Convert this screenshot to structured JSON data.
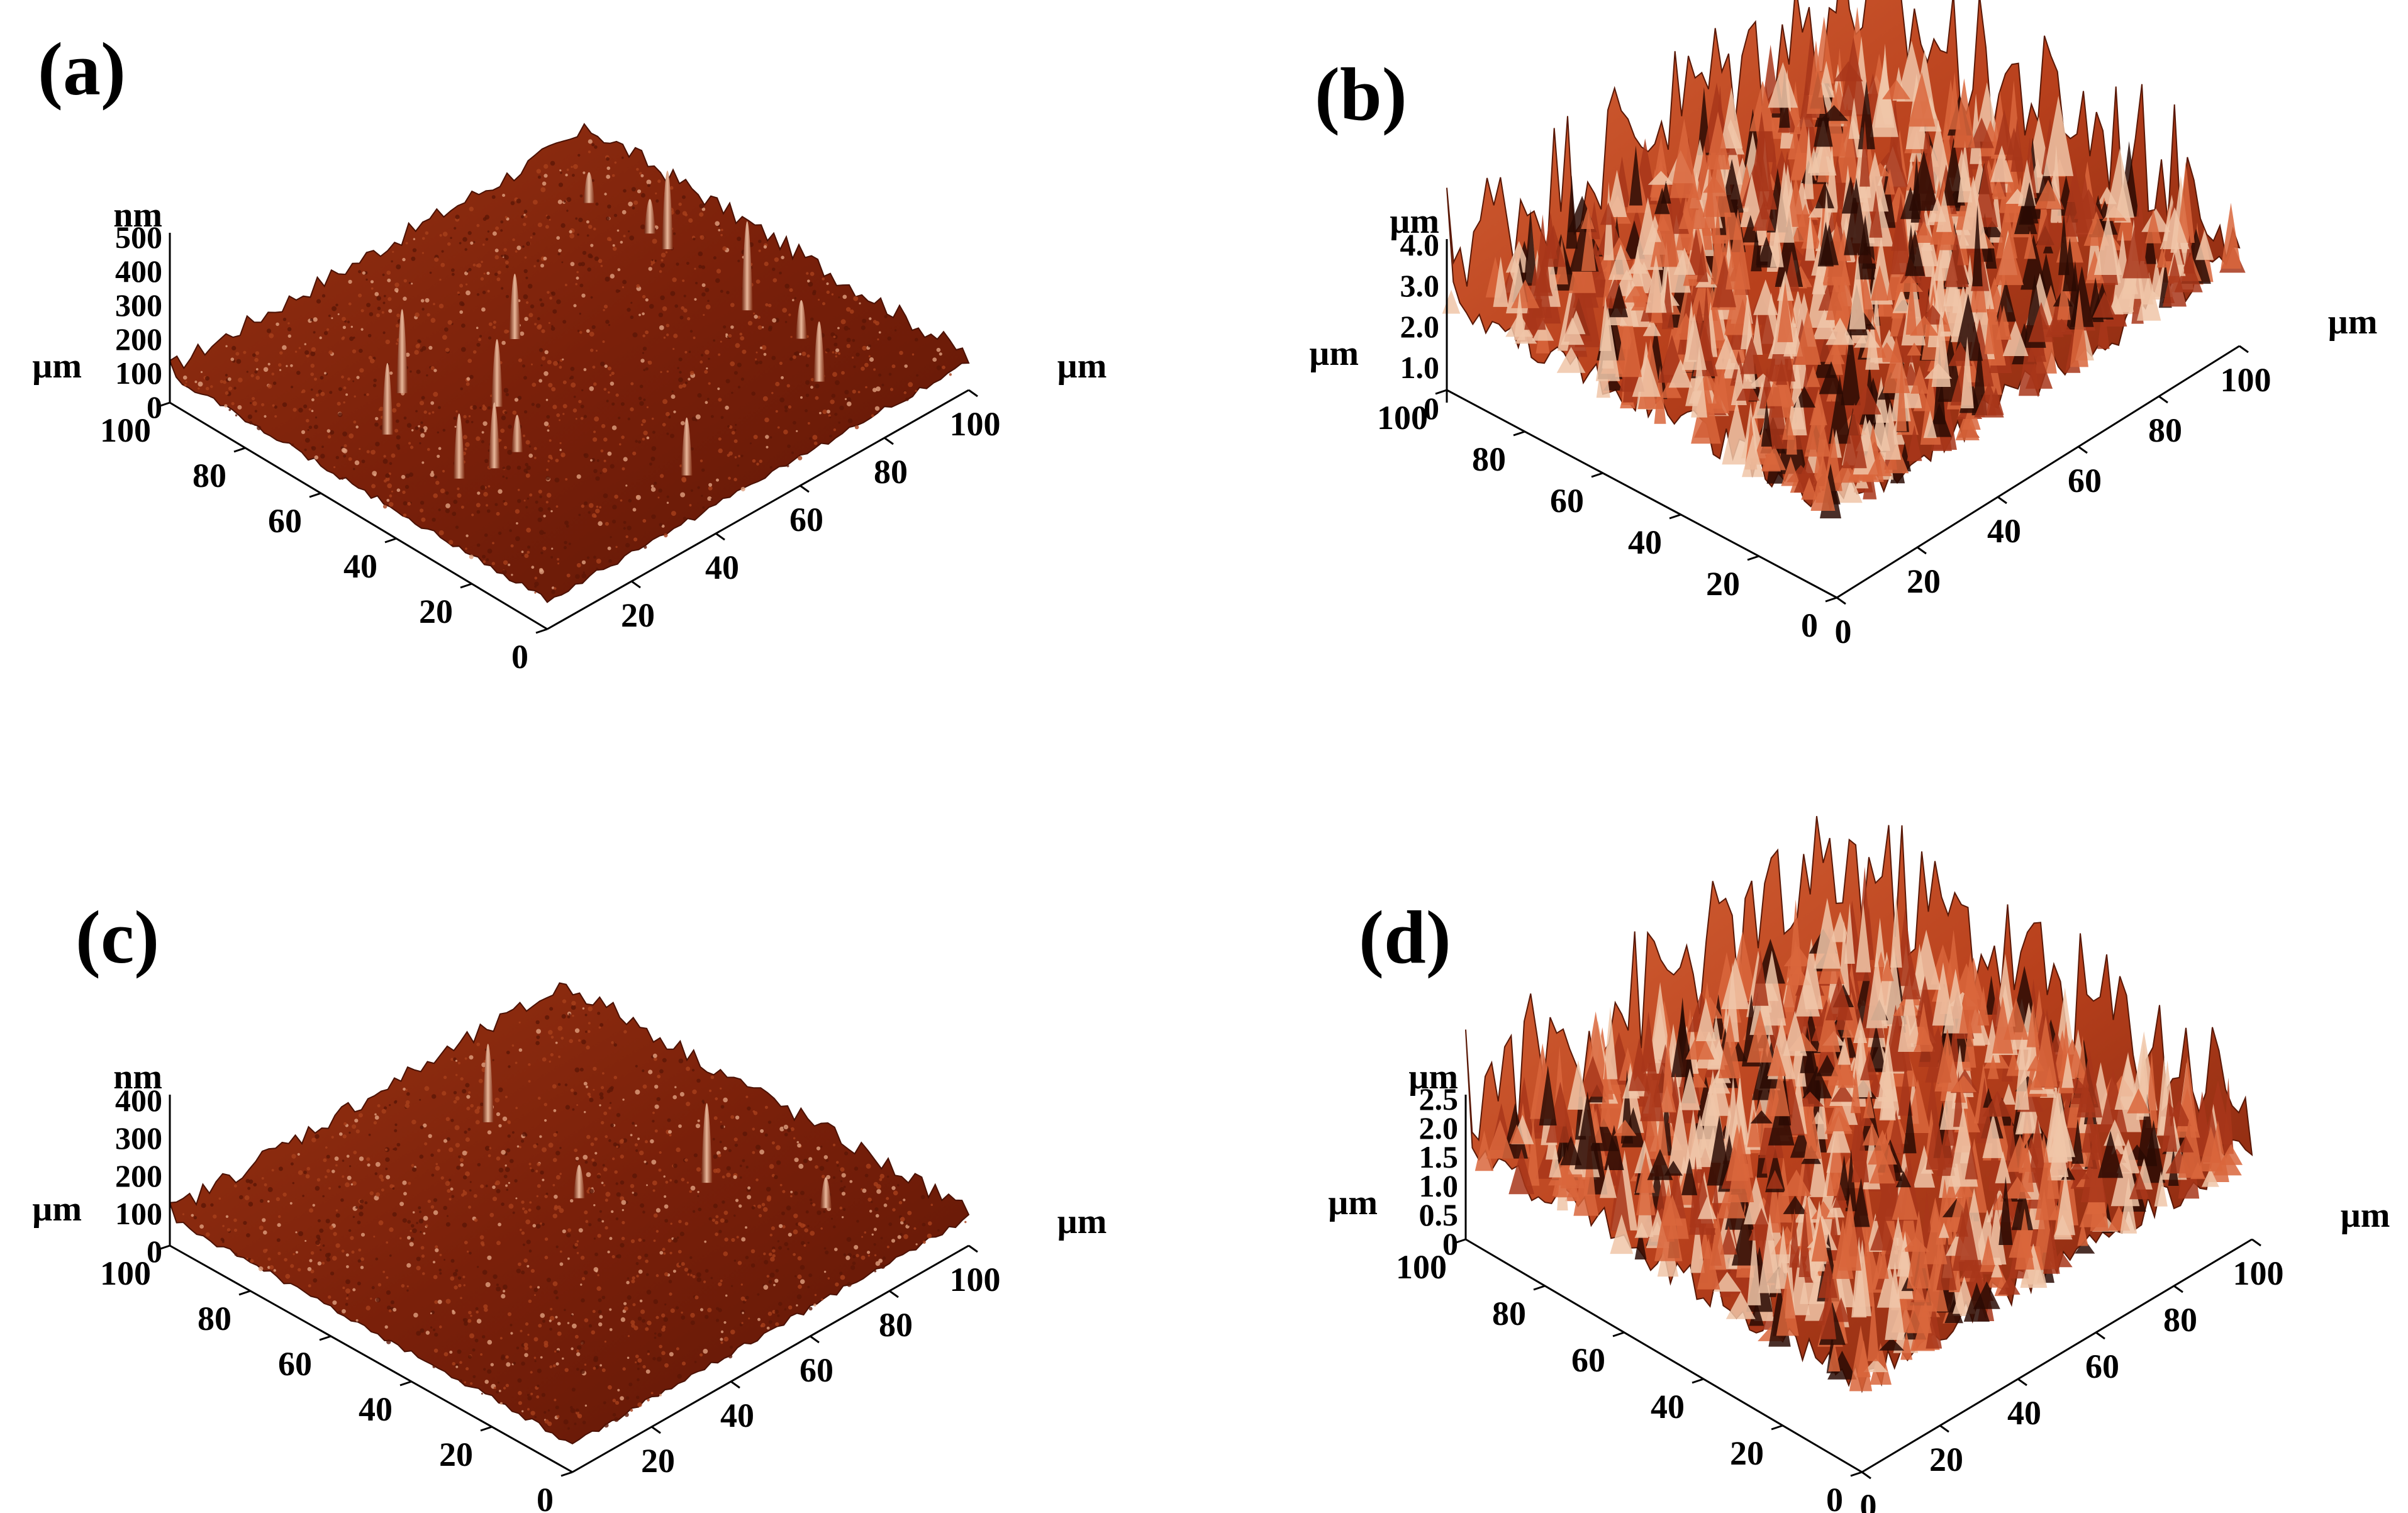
{
  "panels": [
    {
      "id": "a",
      "label": "(a)",
      "z_unit": "nm",
      "z_ticks": [
        "500",
        "400",
        "300",
        "200",
        "100",
        "0"
      ],
      "left_unit": "µm",
      "left_ticks": [
        "100",
        "80",
        "60",
        "40",
        "20",
        "0"
      ],
      "right_unit": "µm",
      "right_ticks": [
        "20",
        "40",
        "60",
        "80",
        "100"
      ],
      "surface_color": "#8a2a0e",
      "surface_roughness": 0.08,
      "spikes": 14
    },
    {
      "id": "b",
      "label": "(b)",
      "z_unit": "µm",
      "z_ticks": [
        "4.0",
        "3.0",
        "2.0",
        "1.0",
        "0"
      ],
      "left_unit": "µm",
      "left_ticks": [
        "100",
        "80",
        "60",
        "40",
        "20",
        "0"
      ],
      "right_unit": "µm",
      "right_ticks": [
        "0",
        "20",
        "40",
        "60",
        "80",
        "100"
      ],
      "surface_color": "#c24a22",
      "surface_roughness": 1.0,
      "spikes": 0
    },
    {
      "id": "c",
      "label": "(c)",
      "z_unit": "nm",
      "z_ticks": [
        "400",
        "300",
        "200",
        "100",
        "0"
      ],
      "left_unit": "µm",
      "left_ticks": [
        "100",
        "80",
        "60",
        "40",
        "20",
        "0"
      ],
      "right_unit": "µm",
      "right_ticks": [
        "20",
        "40",
        "60",
        "80",
        "100"
      ],
      "surface_color": "#7f240c",
      "surface_roughness": 0.12,
      "spikes": 4
    },
    {
      "id": "d",
      "label": "(d)",
      "z_unit": "µm",
      "z_ticks": [
        "2.5",
        "2.0",
        "1.5",
        "1.0",
        "0.5",
        "0"
      ],
      "left_unit": "µm",
      "left_ticks": [
        "100",
        "80",
        "60",
        "40",
        "20",
        "0"
      ],
      "right_unit": "µm",
      "right_ticks": [
        "0",
        "20",
        "40",
        "60",
        "80",
        "100"
      ],
      "surface_color": "#c8502a",
      "surface_roughness": 0.85,
      "spikes": 0
    }
  ]
}
